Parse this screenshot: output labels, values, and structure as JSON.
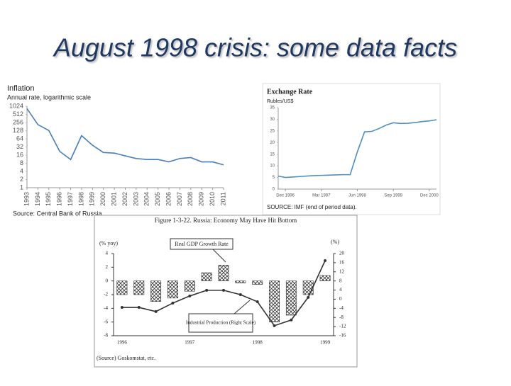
{
  "slide_title": "August 1998 crisis: some data facts",
  "chart_data": [
    {
      "type": "line",
      "title": "Inflation",
      "subtitle": "Annual rate, logarithmic scale",
      "source": "Source: Central Bank of Russia.",
      "log_scale": true,
      "color": "#4a7ebb",
      "categories": [
        "1993",
        "1994",
        "1995",
        "1996",
        "1997",
        "1998",
        "1999",
        "2000",
        "2001",
        "2002",
        "2003",
        "2004",
        "2005",
        "2006",
        "2007",
        "2008",
        "2009",
        "2010",
        "2011"
      ],
      "values": [
        840,
        215,
        130,
        22,
        11,
        84,
        37,
        20,
        19,
        15,
        12,
        11,
        11,
        9,
        12,
        13,
        9,
        9,
        7
      ],
      "ylim": [
        1,
        1024
      ],
      "yticks": [
        1,
        2,
        4,
        8,
        16,
        32,
        64,
        128,
        256,
        512,
        1024
      ],
      "grid": false
    },
    {
      "type": "line",
      "title": "Exchange Rate",
      "subtitle": "Rubles/US$",
      "source": "SOURCE: IMF (end of period data).",
      "color": "#4f8fc0",
      "categories": [
        null,
        "Dec 1996",
        null,
        null,
        null,
        null,
        "Mar 1997",
        null,
        null,
        null,
        null,
        "Jun 1998",
        null,
        null,
        null,
        null,
        "Sep 1999",
        null,
        null,
        null,
        null,
        "Dec 2000",
        null
      ],
      "values": [
        5.6,
        5.0,
        5.2,
        5.4,
        5.6,
        5.8,
        5.9,
        6.0,
        6.1,
        6.2,
        6.2,
        16,
        24.6,
        24.8,
        26,
        27.5,
        28.5,
        28.2,
        28.3,
        28.6,
        29,
        29.3,
        29.8
      ],
      "ylim": [
        0,
        35
      ],
      "yticks": [
        0,
        5,
        10,
        15,
        20,
        25,
        30,
        35
      ],
      "grid": false
    },
    {
      "type": "bar",
      "title": "Figure 1-3-22.  Russia: Economy May Have Hit Bottom",
      "source": "(Source) Goskomstat, etc.",
      "ylabel": "(% yoy)",
      "y2label": "(%)",
      "categories": [
        "1996",
        null,
        null,
        null,
        "1997",
        null,
        null,
        null,
        "1998",
        null,
        null,
        null,
        "1999"
      ],
      "series": [
        {
          "name": "Real GDP Growth Rate",
          "color": "#333333",
          "values": [
            -2,
            -2,
            -3,
            -2.5,
            -1.5,
            1.2,
            2.3,
            -0.3,
            -0.5,
            -6,
            -5,
            -2,
            0.8
          ]
        },
        {
          "name": "Industrial Production (Right Scale)",
          "color": "#333333",
          "axis": "y2",
          "values": [
            -3.6,
            -3.6,
            -5.4,
            -1.7,
            1.4,
            3.9,
            3.9,
            2,
            -1.1,
            -11.6,
            -9.1,
            0.8,
            16.9
          ]
        }
      ],
      "ylim": [
        -8,
        4
      ],
      "yticks": [
        4,
        2,
        0,
        -2,
        -4,
        -6,
        -8
      ],
      "y2lim": [
        -16,
        20
      ],
      "y2ticks": [
        20,
        16,
        12,
        8,
        4,
        0,
        -4,
        -8,
        -12,
        -16
      ],
      "grid": false
    }
  ]
}
